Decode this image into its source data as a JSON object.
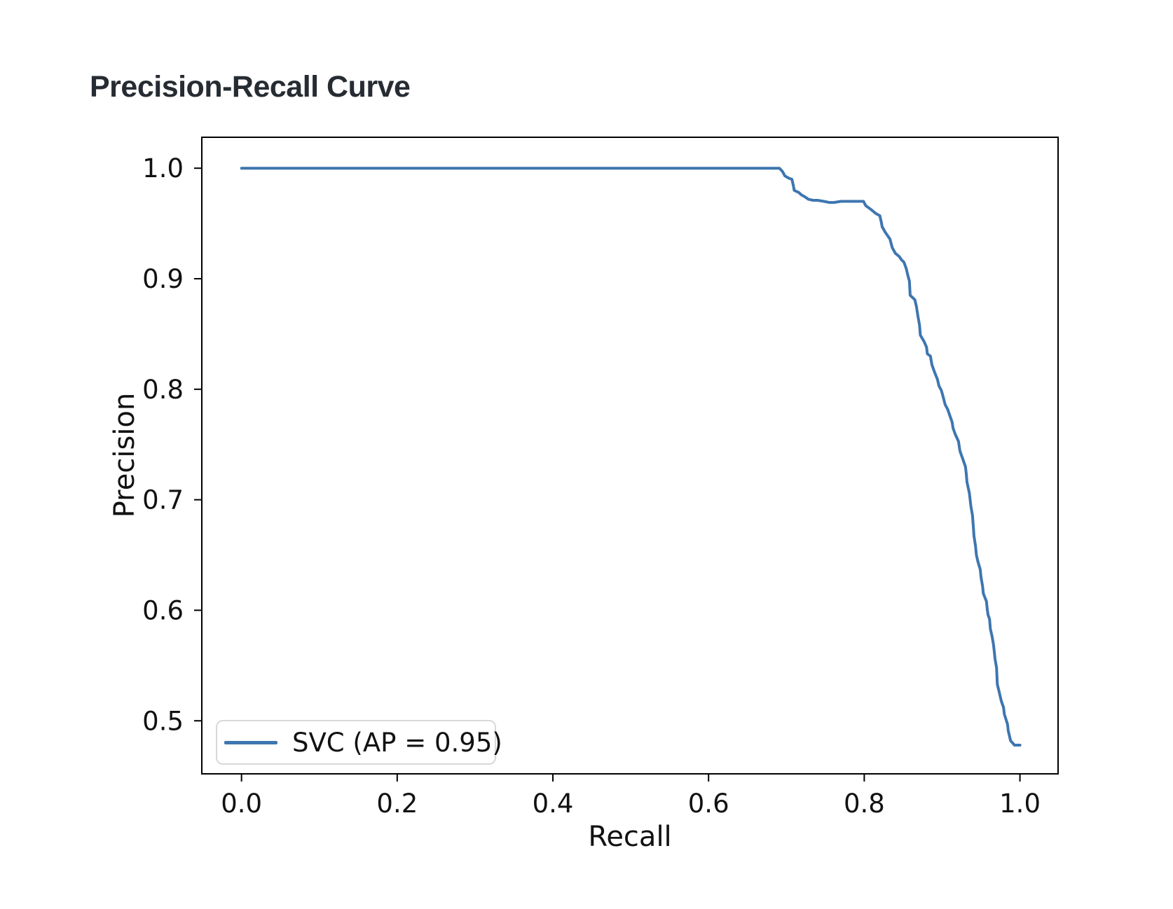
{
  "page": {
    "background_color": "#ffffff"
  },
  "chart_data": {
    "type": "line",
    "title": "Precision-Recall Curve",
    "xlabel": "Recall",
    "ylabel": "Precision",
    "xlim": [
      -0.051,
      1.049
    ],
    "ylim": [
      0.452,
      1.028
    ],
    "xticks": [
      0.0,
      0.2,
      0.4,
      0.6,
      0.8,
      1.0
    ],
    "xtick_labels": [
      "0.0",
      "0.2",
      "0.4",
      "0.6",
      "0.8",
      "1.0"
    ],
    "yticks": [
      0.5,
      0.6,
      0.7,
      0.8,
      0.9,
      1.0
    ],
    "ytick_labels": [
      "0.5",
      "0.6",
      "0.7",
      "0.8",
      "0.9",
      "1.0"
    ],
    "grid": false,
    "line_color": "#3e76b0",
    "line_width": 4,
    "spine_color": "#000000",
    "title_color": "#272c33",
    "text_color": "#111111",
    "legend": {
      "position": "lower left",
      "entries": [
        {
          "label": "SVC (AP = 0.95)",
          "color": "#3e76b0"
        }
      ]
    },
    "series": [
      {
        "name": "SVC (AP = 0.95)",
        "model": "SVC",
        "average_precision": 0.95,
        "color": "#3e76b0",
        "points": [
          [
            0.0,
            1.0
          ],
          [
            0.691,
            1.0
          ],
          [
            0.695,
            0.997
          ],
          [
            0.698,
            0.993
          ],
          [
            0.703,
            0.991
          ],
          [
            0.707,
            0.99
          ],
          [
            0.709,
            0.984
          ],
          [
            0.71,
            0.98
          ],
          [
            0.716,
            0.978
          ],
          [
            0.719,
            0.976
          ],
          [
            0.724,
            0.974
          ],
          [
            0.728,
            0.972
          ],
          [
            0.734,
            0.971
          ],
          [
            0.74,
            0.971
          ],
          [
            0.748,
            0.97
          ],
          [
            0.755,
            0.969
          ],
          [
            0.761,
            0.969
          ],
          [
            0.77,
            0.97
          ],
          [
            0.779,
            0.97
          ],
          [
            0.79,
            0.97
          ],
          [
            0.799,
            0.97
          ],
          [
            0.802,
            0.966
          ],
          [
            0.808,
            0.963
          ],
          [
            0.815,
            0.959
          ],
          [
            0.82,
            0.957
          ],
          [
            0.822,
            0.951
          ],
          [
            0.823,
            0.947
          ],
          [
            0.827,
            0.942
          ],
          [
            0.83,
            0.939
          ],
          [
            0.833,
            0.936
          ],
          [
            0.836,
            0.928
          ],
          [
            0.84,
            0.923
          ],
          [
            0.845,
            0.92
          ],
          [
            0.848,
            0.917
          ],
          [
            0.851,
            0.915
          ],
          [
            0.854,
            0.909
          ],
          [
            0.856,
            0.903
          ],
          [
            0.858,
            0.898
          ],
          [
            0.859,
            0.885
          ],
          [
            0.865,
            0.881
          ],
          [
            0.867,
            0.875
          ],
          [
            0.869,
            0.866
          ],
          [
            0.871,
            0.858
          ],
          [
            0.872,
            0.849
          ],
          [
            0.877,
            0.843
          ],
          [
            0.88,
            0.838
          ],
          [
            0.881,
            0.832
          ],
          [
            0.885,
            0.83
          ],
          [
            0.887,
            0.822
          ],
          [
            0.89,
            0.816
          ],
          [
            0.894,
            0.809
          ],
          [
            0.896,
            0.803
          ],
          [
            0.899,
            0.799
          ],
          [
            0.901,
            0.794
          ],
          [
            0.904,
            0.786
          ],
          [
            0.907,
            0.782
          ],
          [
            0.91,
            0.776
          ],
          [
            0.913,
            0.77
          ],
          [
            0.914,
            0.765
          ],
          [
            0.917,
            0.759
          ],
          [
            0.921,
            0.753
          ],
          [
            0.923,
            0.744
          ],
          [
            0.926,
            0.738
          ],
          [
            0.93,
            0.73
          ],
          [
            0.931,
            0.724
          ],
          [
            0.932,
            0.716
          ],
          [
            0.935,
            0.706
          ],
          [
            0.937,
            0.694
          ],
          [
            0.939,
            0.686
          ],
          [
            0.94,
            0.677
          ],
          [
            0.941,
            0.667
          ],
          [
            0.943,
            0.658
          ],
          [
            0.944,
            0.65
          ],
          [
            0.946,
            0.644
          ],
          [
            0.949,
            0.637
          ],
          [
            0.95,
            0.63
          ],
          [
            0.952,
            0.622
          ],
          [
            0.953,
            0.615
          ],
          [
            0.957,
            0.608
          ],
          [
            0.958,
            0.601
          ],
          [
            0.959,
            0.596
          ],
          [
            0.961,
            0.592
          ],
          [
            0.962,
            0.583
          ],
          [
            0.964,
            0.577
          ],
          [
            0.966,
            0.569
          ],
          [
            0.967,
            0.563
          ],
          [
            0.968,
            0.556
          ],
          [
            0.97,
            0.548
          ],
          [
            0.971,
            0.533
          ],
          [
            0.973,
            0.527
          ],
          [
            0.976,
            0.518
          ],
          [
            0.979,
            0.512
          ],
          [
            0.98,
            0.506
          ],
          [
            0.984,
            0.497
          ],
          [
            0.985,
            0.491
          ],
          [
            0.988,
            0.482
          ],
          [
            0.993,
            0.478
          ],
          [
            1.0,
            0.478
          ]
        ]
      }
    ]
  }
}
